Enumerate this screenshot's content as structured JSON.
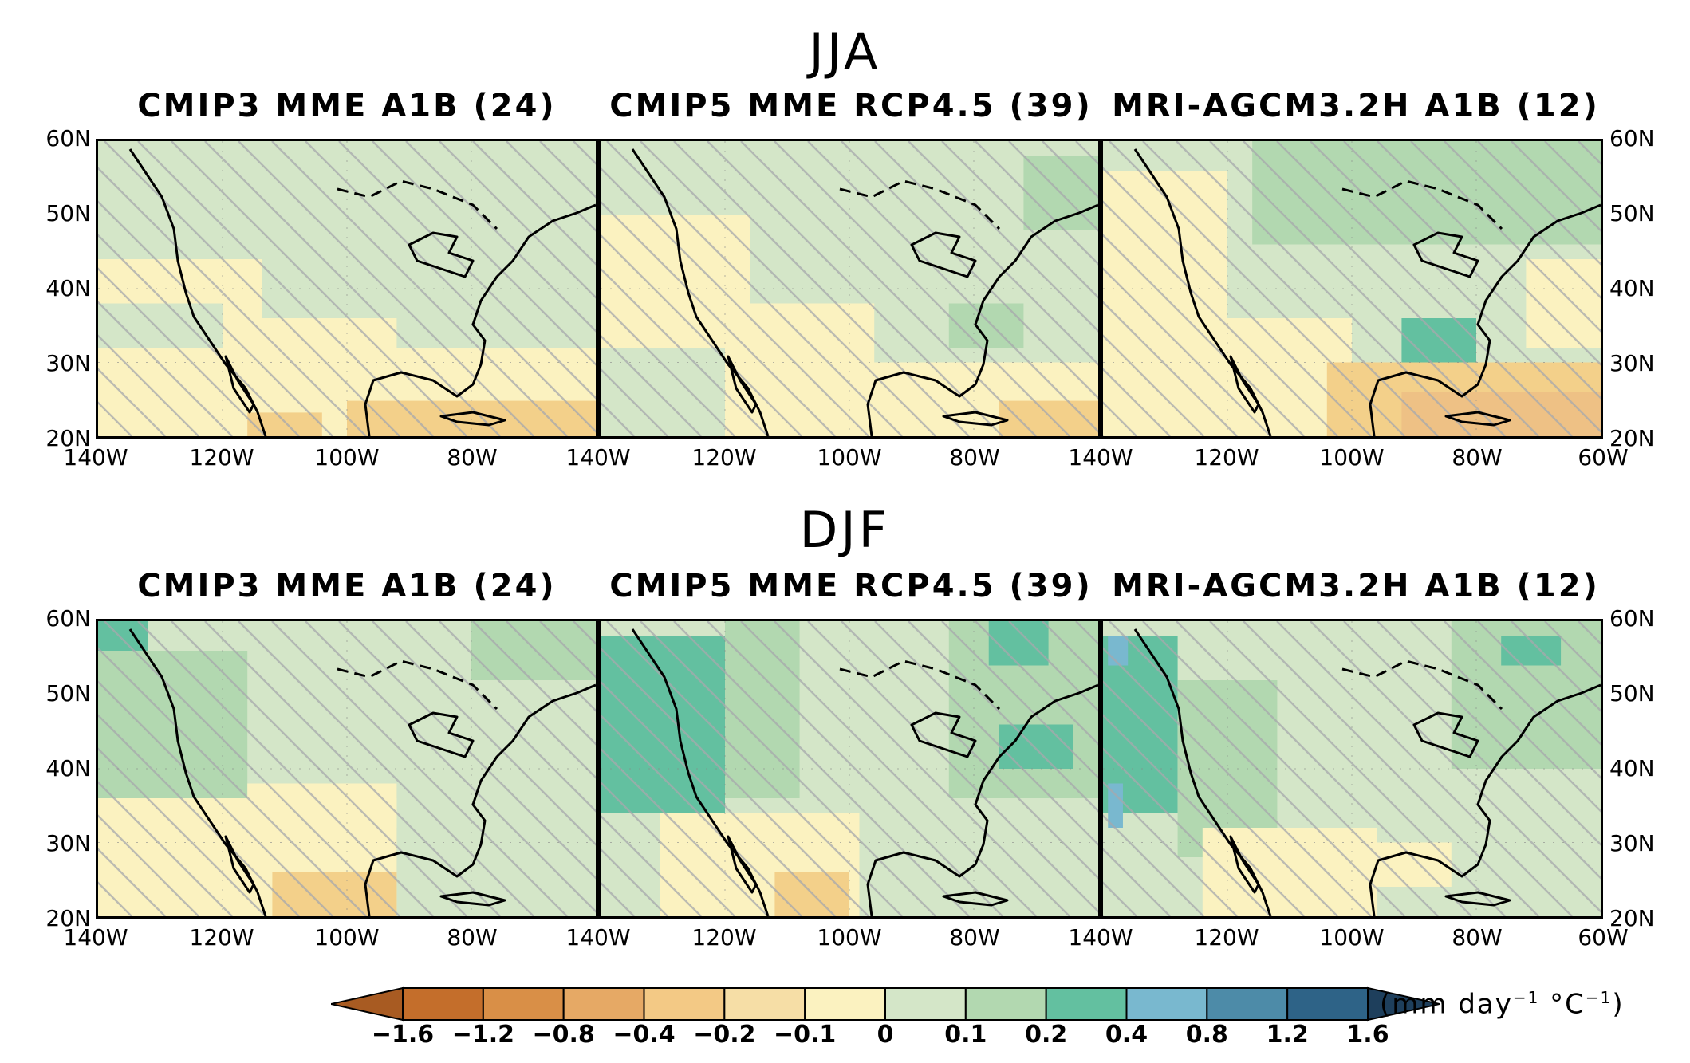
{
  "seasons": [
    {
      "title": "JJA",
      "panels": [
        {
          "title": "CMIP3 MME A1B (24)",
          "base": "#fbf2c0",
          "patches": [
            [
              "#d4e6c8",
              0,
              0,
              0.33,
              0.4
            ],
            [
              "#d4e6c8",
              0.33,
              0,
              0.67,
              0.6
            ],
            [
              "#d4e6c8",
              0.6,
              0.55,
              0.4,
              0.15
            ],
            [
              "#d4e6c8",
              0,
              0.55,
              0.25,
              0.15
            ],
            [
              "#f3d08a",
              0.5,
              0.88,
              0.5,
              0.12
            ],
            [
              "#f3d08a",
              0.3,
              0.92,
              0.15,
              0.08
            ]
          ]
        },
        {
          "title": "CMIP5 MME RCP4.5 (39)",
          "base": "#fbf2c0",
          "patches": [
            [
              "#d4e6c8",
              0,
              0,
              0.3,
              0.25
            ],
            [
              "#d4e6c8",
              0.3,
              0,
              0.7,
              0.55
            ],
            [
              "#d4e6c8",
              0.55,
              0.5,
              0.45,
              0.25
            ],
            [
              "#b2d8b0",
              0.85,
              0.05,
              0.15,
              0.25
            ],
            [
              "#b2d8b0",
              0.7,
              0.55,
              0.15,
              0.15
            ],
            [
              "#d4e6c8",
              0,
              0.7,
              0.25,
              0.3
            ],
            [
              "#f3d08a",
              0.8,
              0.88,
              0.2,
              0.12
            ]
          ]
        },
        {
          "title": "MRI-AGCM3.2H A1B (12)",
          "base": "#d4e6c8",
          "patches": [
            [
              "#fbf2c0",
              0,
              0.1,
              0.25,
              0.9
            ],
            [
              "#fbf2c0",
              0.25,
              0.6,
              0.25,
              0.4
            ],
            [
              "#b2d8b0",
              0.3,
              0,
              0.7,
              0.35
            ],
            [
              "#63c0a0",
              0.6,
              0.6,
              0.15,
              0.15
            ],
            [
              "#f3d08a",
              0.45,
              0.75,
              0.55,
              0.25
            ],
            [
              "#eec185",
              0.6,
              0.85,
              0.4,
              0.15
            ],
            [
              "#fbf2c0",
              0.85,
              0.4,
              0.15,
              0.3
            ]
          ]
        }
      ]
    },
    {
      "title": "DJF",
      "panels": [
        {
          "title": "CMIP3 MME A1B (24)",
          "base": "#d4e6c8",
          "patches": [
            [
              "#63c0a0",
              0,
              0,
              0.1,
              0.15
            ],
            [
              "#63c0a0",
              0.12,
              0.2,
              0.12,
              0.3
            ],
            [
              "#b2d8b0",
              0,
              0.1,
              0.3,
              0.5
            ],
            [
              "#fbf2c0",
              0,
              0.6,
              0.6,
              0.4
            ],
            [
              "#fbf2c0",
              0.3,
              0.55,
              0.3,
              0.15
            ],
            [
              "#f3d08a",
              0.35,
              0.85,
              0.25,
              0.15
            ],
            [
              "#b2d8b0",
              0.75,
              0,
              0.25,
              0.2
            ]
          ]
        },
        {
          "title": "CMIP5 MME RCP4.5 (39)",
          "base": "#d4e6c8",
          "patches": [
            [
              "#63c0a0",
              0,
              0.05,
              0.25,
              0.6
            ],
            [
              "#b2d8b0",
              0.25,
              0,
              0.15,
              0.6
            ],
            [
              "#b2d8b0",
              0.7,
              0,
              0.3,
              0.6
            ],
            [
              "#63c0a0",
              0.78,
              0.0,
              0.12,
              0.15
            ],
            [
              "#63c0a0",
              0.8,
              0.35,
              0.15,
              0.15
            ],
            [
              "#fbf2c0",
              0.12,
              0.65,
              0.4,
              0.35
            ],
            [
              "#f3d08a",
              0.35,
              0.85,
              0.15,
              0.15
            ]
          ]
        },
        {
          "title": "MRI-AGCM3.2H A1B (12)",
          "base": "#d4e6c8",
          "patches": [
            [
              "#63c0a0",
              0,
              0.05,
              0.15,
              0.6
            ],
            [
              "#79b8cf",
              0.01,
              0.05,
              0.04,
              0.1
            ],
            [
              "#79b8cf",
              0.01,
              0.55,
              0.03,
              0.15
            ],
            [
              "#b2d8b0",
              0.15,
              0.2,
              0.2,
              0.6
            ],
            [
              "#b2d8b0",
              0.7,
              0,
              0.3,
              0.5
            ],
            [
              "#63c0a0",
              0.8,
              0.05,
              0.12,
              0.1
            ],
            [
              "#fbf2c0",
              0.2,
              0.7,
              0.35,
              0.3
            ],
            [
              "#fbf2c0",
              0.55,
              0.75,
              0.15,
              0.15
            ]
          ]
        }
      ]
    }
  ],
  "lat_labels": [
    "60N",
    "50N",
    "40N",
    "30N",
    "20N"
  ],
  "lon_labels_panel1": [
    "140W",
    "120W",
    "100W",
    "80W"
  ],
  "lon_labels_panel2": [
    "140W",
    "120W",
    "100W",
    "80W"
  ],
  "lon_labels_panel3": [
    "140W",
    "120W",
    "100W",
    "80W",
    "60W"
  ],
  "colorbar": {
    "colors": [
      "#c46e2b",
      "#d98f47",
      "#e6a965",
      "#f3c985",
      "#f6dea6",
      "#fbf2c0",
      "#d4e6c8",
      "#b2d8b0",
      "#63c0a0",
      "#79b8cf",
      "#4d8ba8",
      "#2e6387"
    ],
    "low_color": "#a85b22",
    "high_color": "#1e3f5c",
    "labels": [
      "−1.6",
      "−1.2",
      "−0.8",
      "−0.4",
      "−0.2",
      "−0.1",
      "0",
      "0.1",
      "0.2",
      "0.4",
      "0.8",
      "1.2",
      "1.6"
    ],
    "unit_prefix": "(mm day",
    "unit_sup1": "−1",
    "unit_mid": " °C",
    "unit_sup2": "−1",
    "unit_suffix": ")"
  }
}
